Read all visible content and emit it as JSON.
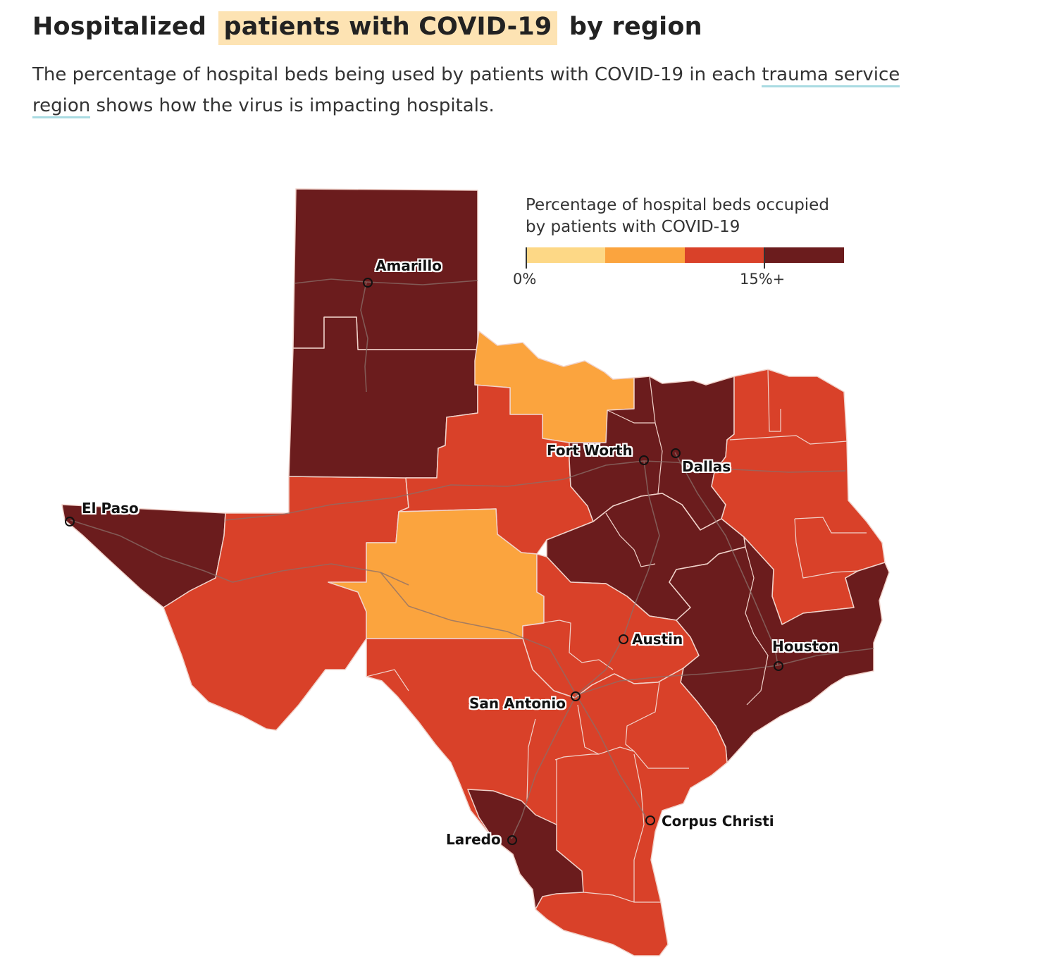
{
  "header": {
    "title_pre": "Hospitalized",
    "title_highlight": "patients with COVID-19",
    "title_post": "by region",
    "subtitle_pre": "The percentage of hospital beds being used by patients with COVID-19 in each",
    "subtitle_link": "trauma service region",
    "subtitle_post": "shows how the virus is impacting hospitals."
  },
  "legend": {
    "title_line1": "Percentage of hospital beds occupied",
    "title_line2": "by patients with COVID-19",
    "min_label": "0%",
    "max_label": "15%+",
    "colors": [
      "#fdd886",
      "#fba43e",
      "#d94129",
      "#6b1c1d"
    ]
  },
  "colors": {
    "lowest": "#fdd886",
    "low": "#fba43e",
    "high": "#d94129",
    "highest": "#6b1c1d",
    "border": "#f3dcd5",
    "road": "#8a6f6a"
  },
  "cities": {
    "amarillo": "Amarillo",
    "el_paso": "El Paso",
    "fort_worth": "Fort Worth",
    "dallas": "Dallas",
    "austin": "Austin",
    "houston": "Houston",
    "san_antonio": "San Antonio",
    "corpus_christi": "Corpus Christi",
    "laredo": "Laredo"
  }
}
